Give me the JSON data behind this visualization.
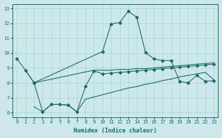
{
  "xlabel": "Humidex (Indice chaleur)",
  "xlim": [
    -0.5,
    23.5
  ],
  "ylim": [
    5.7,
    13.3
  ],
  "yticks": [
    6,
    7,
    8,
    9,
    10,
    11,
    12,
    13
  ],
  "xticks": [
    0,
    1,
    2,
    3,
    4,
    5,
    6,
    7,
    8,
    9,
    10,
    11,
    12,
    13,
    14,
    15,
    16,
    17,
    18,
    19,
    20,
    21,
    22,
    23
  ],
  "background_color": "#cce8eb",
  "grid_color": "#a8ccce",
  "line_color": "#1a6b6b",
  "line1_x": [
    0,
    1,
    2,
    10,
    11,
    12,
    13,
    14,
    15,
    16,
    17,
    18,
    19,
    20,
    21,
    22,
    23
  ],
  "line1_y": [
    9.6,
    8.85,
    8.0,
    10.1,
    11.95,
    12.05,
    12.8,
    12.4,
    10.05,
    9.6,
    9.5,
    9.5,
    8.1,
    8.0,
    8.5,
    8.1,
    8.15
  ],
  "line2_x": [
    1,
    2,
    9,
    10,
    11,
    12,
    13,
    14,
    15,
    16,
    17,
    18,
    19,
    20,
    21,
    22,
    23
  ],
  "line2_y": [
    8.85,
    8.0,
    8.85,
    8.85,
    8.85,
    8.9,
    8.9,
    8.95,
    8.95,
    9.0,
    9.05,
    9.1,
    9.15,
    9.2,
    9.25,
    9.3,
    9.35
  ],
  "line3_x": [
    2,
    3,
    4,
    5,
    6,
    7,
    8,
    9,
    10,
    11,
    12,
    13,
    14,
    15,
    16,
    17,
    18,
    19,
    20,
    21,
    22,
    23
  ],
  "line3_y": [
    8.0,
    6.05,
    6.55,
    6.55,
    6.5,
    6.05,
    7.75,
    8.8,
    8.6,
    8.65,
    8.7,
    8.75,
    8.8,
    8.85,
    8.9,
    8.95,
    9.0,
    9.05,
    9.1,
    9.15,
    9.2,
    9.25
  ],
  "line4_x": [
    2,
    3,
    4,
    5,
    6,
    7,
    8,
    9,
    10,
    11,
    12,
    13,
    14,
    15,
    16,
    17,
    18,
    19,
    20,
    21,
    22,
    23
  ],
  "line4_y": [
    6.4,
    6.05,
    6.55,
    6.55,
    6.5,
    6.05,
    6.9,
    7.05,
    7.2,
    7.35,
    7.5,
    7.65,
    7.75,
    7.9,
    8.0,
    8.15,
    8.25,
    8.4,
    8.5,
    8.6,
    8.7,
    8.2
  ]
}
